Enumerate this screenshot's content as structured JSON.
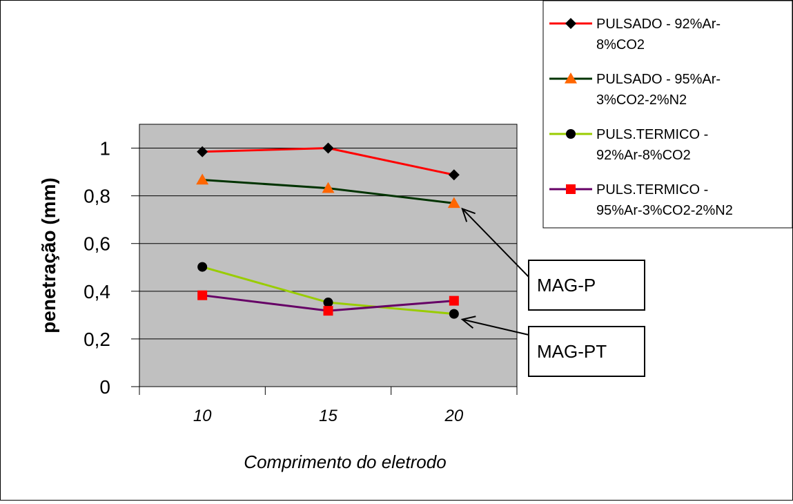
{
  "chart_data": {
    "type": "line",
    "title": "",
    "xlabel": "Comprimento do eletrodo",
    "ylabel": "penetração (mm)",
    "categories": [
      "10",
      "15",
      "20"
    ],
    "ylim": [
      0,
      1.1
    ],
    "yticks": [
      "0",
      "0,2",
      "0,4",
      "0,6",
      "0,8",
      "1"
    ],
    "grid": "horizontal",
    "plot_background": "#c0c0c0",
    "legend_position": "top-right",
    "series": [
      {
        "name_line1": "PULSADO - 92%Ar-",
        "name_line2": "8%CO2",
        "values": [
          0.985,
          1.0,
          0.888
        ],
        "color": "#ff0000",
        "marker": "diamond",
        "marker_color": "#000000"
      },
      {
        "name_line1": "PULSADO - 95%Ar-",
        "name_line2": "3%CO2-2%N2",
        "values": [
          0.867,
          0.832,
          0.769
        ],
        "color": "#003300",
        "marker": "triangle",
        "marker_color": "#ff6600"
      },
      {
        "name_line1": "PULS.TERMICO -",
        "name_line2": "92%Ar-8%CO2",
        "values": [
          0.502,
          0.353,
          0.305
        ],
        "color": "#99cc00",
        "marker": "circle",
        "marker_color": "#000000"
      },
      {
        "name_line1": "PULS.TERMICO -",
        "name_line2": "95%Ar-3%CO2-2%N2",
        "values": [
          0.383,
          0.318,
          0.36
        ],
        "color": "#660066",
        "marker": "square",
        "marker_color": "#ff0000"
      }
    ],
    "annotations": [
      {
        "label": "MAG-P",
        "points_to_category": "20",
        "points_to_value": 0.769
      },
      {
        "label": "MAG-PT",
        "points_to_category": "20",
        "points_to_value": 0.305
      }
    ]
  }
}
